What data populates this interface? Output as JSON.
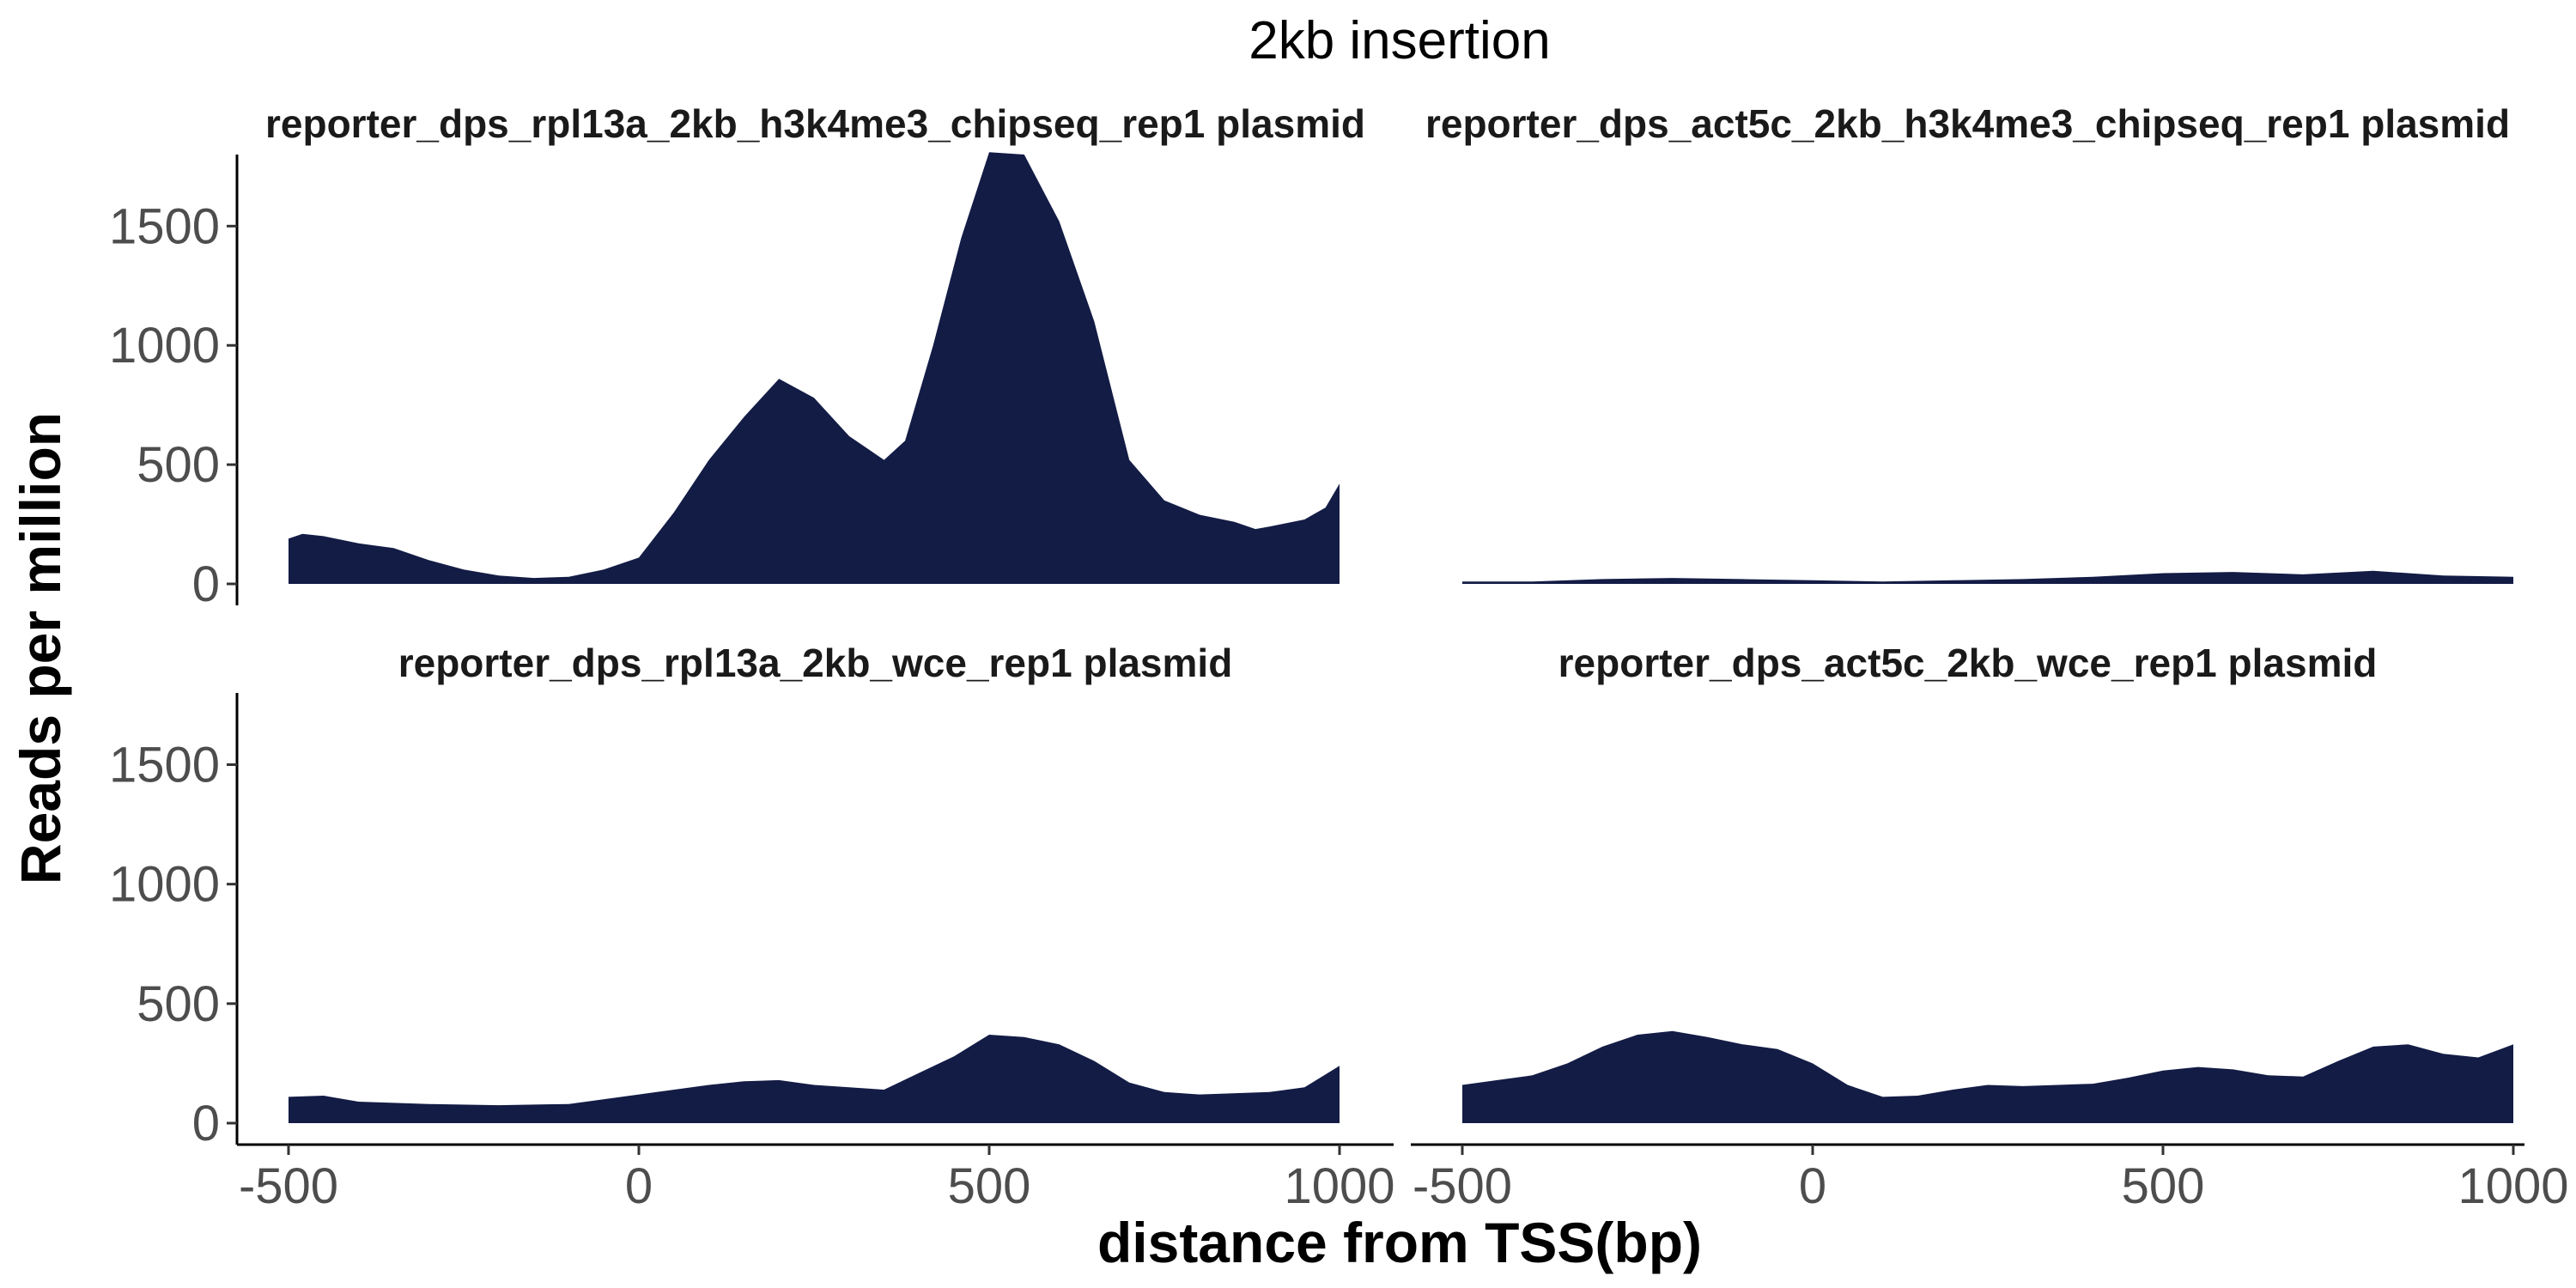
{
  "chart_data": {
    "type": "area",
    "title": "2kb insertion",
    "xlabel": "distance from TSS(bp)",
    "ylabel": "Reads per million",
    "xlim": [
      -500,
      1000
    ],
    "ylim": [
      0,
      1800
    ],
    "x_ticks": [
      "-500",
      "0",
      "500",
      "1000"
    ],
    "y_ticks": [
      "0",
      "500",
      "1000",
      "1500"
    ],
    "fill_color": "#131c45",
    "grid": false,
    "panels": [
      {
        "label": "reporter_dps_rpl13a_2kb_h3k4me3_chipseq_rep1 plasmid",
        "points": [
          [
            -500,
            190
          ],
          [
            -480,
            210
          ],
          [
            -450,
            200
          ],
          [
            -400,
            170
          ],
          [
            -350,
            150
          ],
          [
            -300,
            100
          ],
          [
            -250,
            60
          ],
          [
            -200,
            35
          ],
          [
            -150,
            25
          ],
          [
            -100,
            30
          ],
          [
            -50,
            60
          ],
          [
            0,
            110
          ],
          [
            50,
            300
          ],
          [
            100,
            520
          ],
          [
            150,
            700
          ],
          [
            200,
            860
          ],
          [
            250,
            780
          ],
          [
            300,
            620
          ],
          [
            350,
            520
          ],
          [
            380,
            600
          ],
          [
            420,
            1000
          ],
          [
            460,
            1450
          ],
          [
            500,
            1810
          ],
          [
            550,
            1800
          ],
          [
            600,
            1520
          ],
          [
            650,
            1100
          ],
          [
            700,
            520
          ],
          [
            750,
            350
          ],
          [
            800,
            290
          ],
          [
            850,
            260
          ],
          [
            880,
            230
          ],
          [
            900,
            240
          ],
          [
            950,
            270
          ],
          [
            980,
            320
          ],
          [
            1000,
            420
          ]
        ]
      },
      {
        "label": "reporter_dps_act5c_2kb_h3k4me3_chipseq_rep1 plasmid",
        "points": [
          [
            -500,
            10
          ],
          [
            -400,
            10
          ],
          [
            -300,
            20
          ],
          [
            -200,
            25
          ],
          [
            -100,
            20
          ],
          [
            0,
            15
          ],
          [
            100,
            10
          ],
          [
            200,
            15
          ],
          [
            300,
            20
          ],
          [
            400,
            30
          ],
          [
            500,
            45
          ],
          [
            600,
            50
          ],
          [
            700,
            40
          ],
          [
            800,
            55
          ],
          [
            900,
            35
          ],
          [
            1000,
            30
          ]
        ]
      },
      {
        "label": "reporter_dps_rpl13a_2kb_wce_rep1 plasmid",
        "points": [
          [
            -500,
            110
          ],
          [
            -450,
            115
          ],
          [
            -400,
            90
          ],
          [
            -300,
            80
          ],
          [
            -200,
            75
          ],
          [
            -100,
            80
          ],
          [
            0,
            120
          ],
          [
            100,
            160
          ],
          [
            150,
            175
          ],
          [
            200,
            180
          ],
          [
            250,
            160
          ],
          [
            300,
            150
          ],
          [
            350,
            140
          ],
          [
            400,
            210
          ],
          [
            450,
            280
          ],
          [
            500,
            370
          ],
          [
            550,
            360
          ],
          [
            600,
            330
          ],
          [
            650,
            260
          ],
          [
            700,
            170
          ],
          [
            750,
            130
          ],
          [
            800,
            120
          ],
          [
            900,
            130
          ],
          [
            950,
            150
          ],
          [
            1000,
            240
          ]
        ]
      },
      {
        "label": "reporter_dps_act5c_2kb_wce_rep1 plasmid",
        "points": [
          [
            -500,
            160
          ],
          [
            -450,
            180
          ],
          [
            -400,
            200
          ],
          [
            -350,
            250
          ],
          [
            -300,
            320
          ],
          [
            -250,
            370
          ],
          [
            -200,
            385
          ],
          [
            -150,
            360
          ],
          [
            -100,
            330
          ],
          [
            -50,
            310
          ],
          [
            0,
            250
          ],
          [
            50,
            160
          ],
          [
            100,
            110
          ],
          [
            150,
            115
          ],
          [
            200,
            140
          ],
          [
            250,
            160
          ],
          [
            300,
            155
          ],
          [
            350,
            160
          ],
          [
            400,
            165
          ],
          [
            450,
            190
          ],
          [
            500,
            220
          ],
          [
            550,
            235
          ],
          [
            600,
            225
          ],
          [
            650,
            200
          ],
          [
            700,
            195
          ],
          [
            750,
            260
          ],
          [
            800,
            320
          ],
          [
            850,
            330
          ],
          [
            900,
            290
          ],
          [
            950,
            275
          ],
          [
            1000,
            330
          ]
        ]
      }
    ]
  }
}
